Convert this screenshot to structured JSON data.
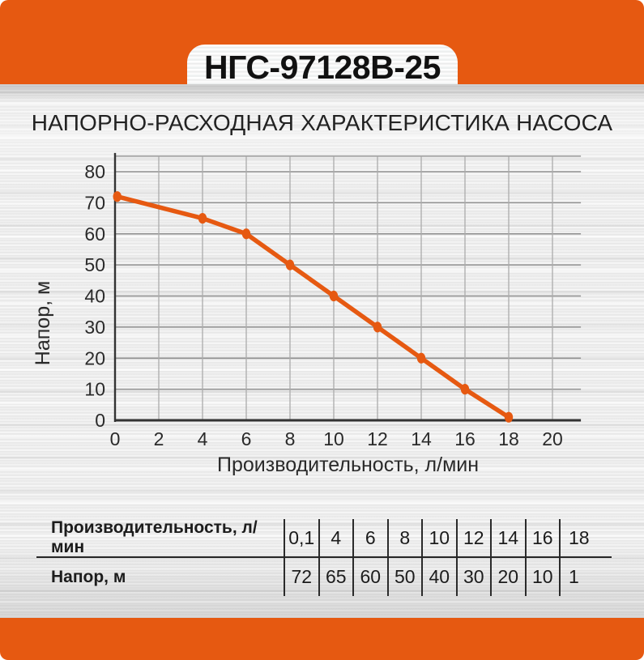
{
  "badge": {
    "model": "НГС-97128В-25"
  },
  "title": "НАПОРНО-РАСХОДНАЯ ХАРАКТЕРИСТИКА НАСОСА",
  "colors": {
    "accent": "#E65911",
    "axis": "#333333",
    "grid_horizontal": "#8f8f8f",
    "grid_vertical": "#ababab",
    "text": "#2a2a2a",
    "table_line": "#2b2b2b"
  },
  "chart_data": {
    "type": "line",
    "x": [
      0.1,
      4,
      6,
      8,
      10,
      12,
      14,
      16,
      18
    ],
    "y": [
      72,
      65,
      60,
      50,
      40,
      30,
      20,
      10,
      1
    ],
    "series_name": "Напорно-расходная характеристика",
    "xlabel": "Производительность, л/мин",
    "ylabel": "Напор, м",
    "xlim": [
      0,
      21.3
    ],
    "ylim": [
      0,
      85
    ],
    "x_ticks": [
      0,
      2,
      4,
      6,
      8,
      10,
      12,
      14,
      16,
      18,
      20
    ],
    "y_ticks": [
      0,
      10,
      20,
      30,
      40,
      50,
      60,
      70,
      80
    ],
    "grid": true,
    "legend": false,
    "marker": "ellipse"
  },
  "table": {
    "rows": [
      {
        "label": "Производительность, л/мин",
        "values": [
          "0,1",
          "4",
          "6",
          "8",
          "10",
          "12",
          "14",
          "16",
          "18"
        ]
      },
      {
        "label": "Напор, м",
        "values": [
          "72",
          "65",
          "60",
          "50",
          "40",
          "30",
          "20",
          "10",
          "1"
        ]
      }
    ]
  }
}
